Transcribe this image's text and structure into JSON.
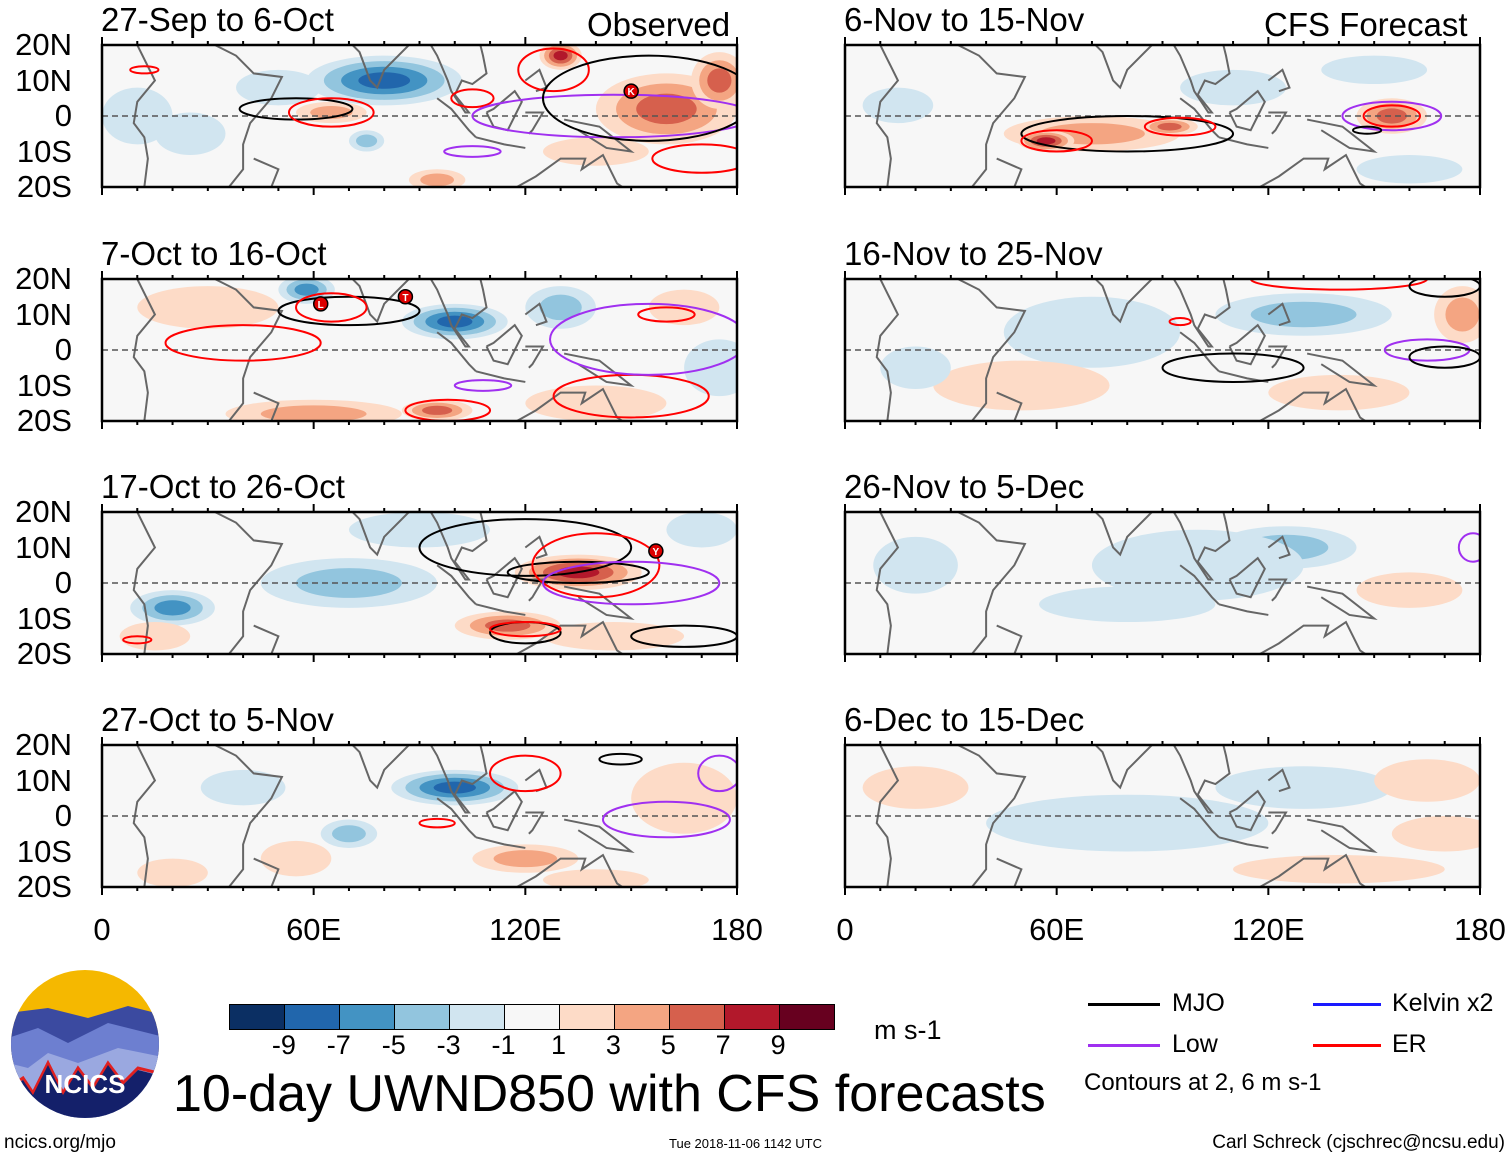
{
  "header": {
    "observed_label": "Observed",
    "forecast_label": "CFS Forecast"
  },
  "footer": {
    "title": "10-day UWND850 with CFS forecasts",
    "website": "ncics.org/mjo",
    "timestamp": "Tue 2018-11-06 1142 UTC",
    "author": "Carl Schreck (cjschrec@ncsu.edu)",
    "logo_text": "NCICS"
  },
  "colorbar": {
    "units": "m s-1",
    "labels": [
      "-9",
      "-7",
      "-5",
      "-3",
      "-1",
      "1",
      "3",
      "5",
      "7",
      "9"
    ],
    "colors": [
      "#0b2f63",
      "#2166ac",
      "#4393c3",
      "#92c5de",
      "#d1e5f0",
      "#f7f7f7",
      "#fddbc7",
      "#f4a582",
      "#d6604d",
      "#b2182b",
      "#67001f"
    ]
  },
  "legend": {
    "items": [
      {
        "label": "MJO",
        "color": "#000000"
      },
      {
        "label": "Kelvin x2",
        "color": "#1a1aff"
      },
      {
        "label": "Low",
        "color": "#a030f0"
      },
      {
        "label": "ER",
        "color": "#ff0000"
      }
    ],
    "note": "Contours at 2, 6 m s-1"
  },
  "chart_data": {
    "type": "heatmap",
    "variable": "850-hPa zonal wind anomaly",
    "units": "m s-1",
    "xlim": [
      0,
      180
    ],
    "ylim": [
      -20,
      20
    ],
    "x_ticks": [
      "0",
      "60E",
      "120E",
      "180"
    ],
    "y_ticks": [
      "20N",
      "10N",
      "0",
      "10S",
      "20S"
    ],
    "panels": [
      {
        "title": "27-Sep to 6-Oct",
        "group": "observed",
        "blobs": [
          [
            80,
            10,
            22,
            7,
            -8
          ],
          [
            50,
            8,
            12,
            5,
            -3
          ],
          [
            65,
            1,
            10,
            3,
            5
          ],
          [
            75,
            -7,
            5,
            3,
            -5
          ],
          [
            130,
            17,
            6,
            4,
            8
          ],
          [
            160,
            2,
            20,
            10,
            6
          ],
          [
            175,
            10,
            8,
            8,
            6
          ],
          [
            25,
            -5,
            10,
            6,
            -3
          ],
          [
            140,
            -10,
            15,
            4,
            2
          ],
          [
            95,
            -18,
            8,
            3,
            4
          ],
          [
            10,
            0,
            10,
            8,
            -2
          ]
        ],
        "contours": [
          [
            "mjo",
            55,
            2,
            16,
            3
          ],
          [
            "er",
            65,
            1,
            12,
            4
          ],
          [
            "er",
            105,
            5,
            6,
            2.5
          ],
          [
            "er",
            128,
            13,
            10,
            6
          ],
          [
            "low",
            145,
            0,
            40,
            6
          ],
          [
            "mjo",
            155,
            5,
            30,
            12
          ],
          [
            "er",
            170,
            -12,
            14,
            4
          ],
          [
            "low",
            105,
            -10,
            8,
            1.5
          ],
          [
            "er",
            12,
            13,
            4,
            1
          ]
        ],
        "storms": [
          [
            "K",
            150,
            7
          ]
        ]
      },
      {
        "title": "7-Oct to 16-Oct",
        "group": "observed",
        "blobs": [
          [
            58,
            17,
            8,
            4,
            -7
          ],
          [
            100,
            8,
            15,
            5,
            -8
          ],
          [
            130,
            12,
            10,
            6,
            -4
          ],
          [
            30,
            12,
            20,
            6,
            2
          ],
          [
            60,
            -18,
            25,
            4,
            4
          ],
          [
            95,
            -17,
            10,
            3,
            7
          ],
          [
            140,
            -15,
            20,
            5,
            3
          ],
          [
            175,
            -5,
            10,
            8,
            -2
          ],
          [
            165,
            12,
            10,
            5,
            3
          ]
        ],
        "contours": [
          [
            "mjo",
            70,
            11,
            20,
            4
          ],
          [
            "er",
            40,
            2,
            22,
            5
          ],
          [
            "er",
            65,
            12,
            10,
            4
          ],
          [
            "er",
            150,
            -13,
            22,
            6
          ],
          [
            "low",
            155,
            3,
            28,
            10
          ],
          [
            "er",
            98,
            -17,
            12,
            3
          ],
          [
            "low",
            108,
            -10,
            8,
            1.5
          ],
          [
            "er",
            160,
            10,
            8,
            2
          ]
        ],
        "storms": [
          [
            "L",
            62,
            13
          ],
          [
            "T",
            86,
            15
          ]
        ]
      },
      {
        "title": "17-Oct to 26-Oct",
        "group": "observed",
        "blobs": [
          [
            70,
            0,
            25,
            7,
            -5
          ],
          [
            20,
            -7,
            12,
            5,
            -6
          ],
          [
            135,
            3,
            18,
            5,
            9
          ],
          [
            115,
            -12,
            15,
            4,
            6
          ],
          [
            145,
            -15,
            20,
            4,
            3
          ],
          [
            15,
            -15,
            10,
            4,
            3
          ],
          [
            90,
            15,
            20,
            5,
            -2
          ],
          [
            170,
            15,
            10,
            5,
            -2
          ]
        ],
        "contours": [
          [
            "mjo",
            120,
            10,
            30,
            8
          ],
          [
            "mjo",
            135,
            3,
            20,
            3
          ],
          [
            "er",
            140,
            5,
            18,
            9
          ],
          [
            "low",
            150,
            0,
            25,
            6
          ],
          [
            "mjo",
            120,
            -14,
            10,
            3
          ],
          [
            "er",
            120,
            -13,
            10,
            2
          ],
          [
            "er",
            10,
            -16,
            4,
            1
          ],
          [
            "mjo",
            165,
            -15,
            15,
            3
          ]
        ],
        "storms": [
          [
            "Y",
            157,
            9
          ]
        ]
      },
      {
        "title": "27-Oct to 5-Nov",
        "group": "observed",
        "blobs": [
          [
            100,
            8,
            18,
            5,
            -8
          ],
          [
            70,
            -5,
            8,
            4,
            -4
          ],
          [
            40,
            8,
            12,
            5,
            -3
          ],
          [
            55,
            -12,
            10,
            5,
            3
          ],
          [
            120,
            -12,
            15,
            4,
            4
          ],
          [
            165,
            5,
            15,
            10,
            3
          ],
          [
            20,
            -16,
            10,
            4,
            3
          ],
          [
            140,
            -18,
            15,
            3,
            3
          ]
        ],
        "contours": [
          [
            "er",
            120,
            12,
            10,
            5
          ],
          [
            "mjo",
            147,
            16,
            6,
            1.5
          ],
          [
            "low",
            160,
            -1,
            18,
            5
          ],
          [
            "er",
            95,
            -2,
            5,
            1.2
          ],
          [
            "low",
            175,
            12,
            6,
            5
          ]
        ],
        "storms": []
      },
      {
        "title": "6-Nov to 15-Nov",
        "group": "forecast",
        "blobs": [
          [
            70,
            -5,
            25,
            5,
            5
          ],
          [
            57,
            -7,
            8,
            3,
            8
          ],
          [
            92,
            -3,
            8,
            2.5,
            7
          ],
          [
            155,
            0,
            10,
            5,
            6
          ],
          [
            150,
            13,
            15,
            4,
            -3
          ],
          [
            15,
            3,
            10,
            5,
            -3
          ],
          [
            110,
            8,
            15,
            5,
            -2
          ],
          [
            160,
            -15,
            15,
            4,
            -3
          ]
        ],
        "contours": [
          [
            "mjo",
            80,
            -5,
            30,
            5
          ],
          [
            "er",
            60,
            -7,
            10,
            3
          ],
          [
            "er",
            95,
            -3,
            10,
            2.5
          ],
          [
            "low",
            155,
            0,
            14,
            4
          ],
          [
            "er",
            155,
            0,
            8,
            3
          ],
          [
            "mjo",
            148,
            -4,
            4,
            1
          ]
        ],
        "storms": []
      },
      {
        "title": "16-Nov to 25-Nov",
        "group": "forecast",
        "blobs": [
          [
            130,
            10,
            25,
            6,
            -5
          ],
          [
            70,
            5,
            25,
            10,
            -2
          ],
          [
            50,
            -10,
            25,
            7,
            2
          ],
          [
            175,
            10,
            8,
            8,
            4
          ],
          [
            20,
            -5,
            10,
            6,
            -2
          ],
          [
            140,
            -12,
            20,
            5,
            2
          ]
        ],
        "contours": [
          [
            "mjo",
            110,
            -5,
            20,
            4
          ],
          [
            "low",
            165,
            0,
            12,
            3
          ],
          [
            "mjo",
            170,
            -2,
            10,
            3
          ],
          [
            "er",
            95,
            8,
            3,
            1
          ],
          [
            "er",
            140,
            20,
            25,
            3
          ],
          [
            "mjo",
            170,
            18,
            10,
            3
          ]
        ],
        "storms": []
      },
      {
        "title": "26-Nov to 5-Dec",
        "group": "forecast",
        "blobs": [
          [
            125,
            10,
            20,
            6,
            -4
          ],
          [
            80,
            -6,
            25,
            5,
            -3
          ],
          [
            160,
            -2,
            15,
            5,
            3
          ],
          [
            20,
            5,
            12,
            8,
            -2
          ],
          [
            100,
            5,
            30,
            10,
            -2
          ]
        ],
        "contours": [
          [
            "low",
            178,
            10,
            4,
            4
          ]
        ],
        "storms": []
      },
      {
        "title": "6-Dec to 15-Dec",
        "group": "forecast",
        "blobs": [
          [
            80,
            -2,
            40,
            8,
            -2
          ],
          [
            130,
            8,
            25,
            6,
            -2
          ],
          [
            165,
            10,
            15,
            6,
            2
          ],
          [
            140,
            -15,
            30,
            4,
            2
          ],
          [
            170,
            -5,
            15,
            5,
            2
          ],
          [
            20,
            8,
            15,
            6,
            2
          ]
        ],
        "contours": [],
        "storms": []
      }
    ]
  }
}
